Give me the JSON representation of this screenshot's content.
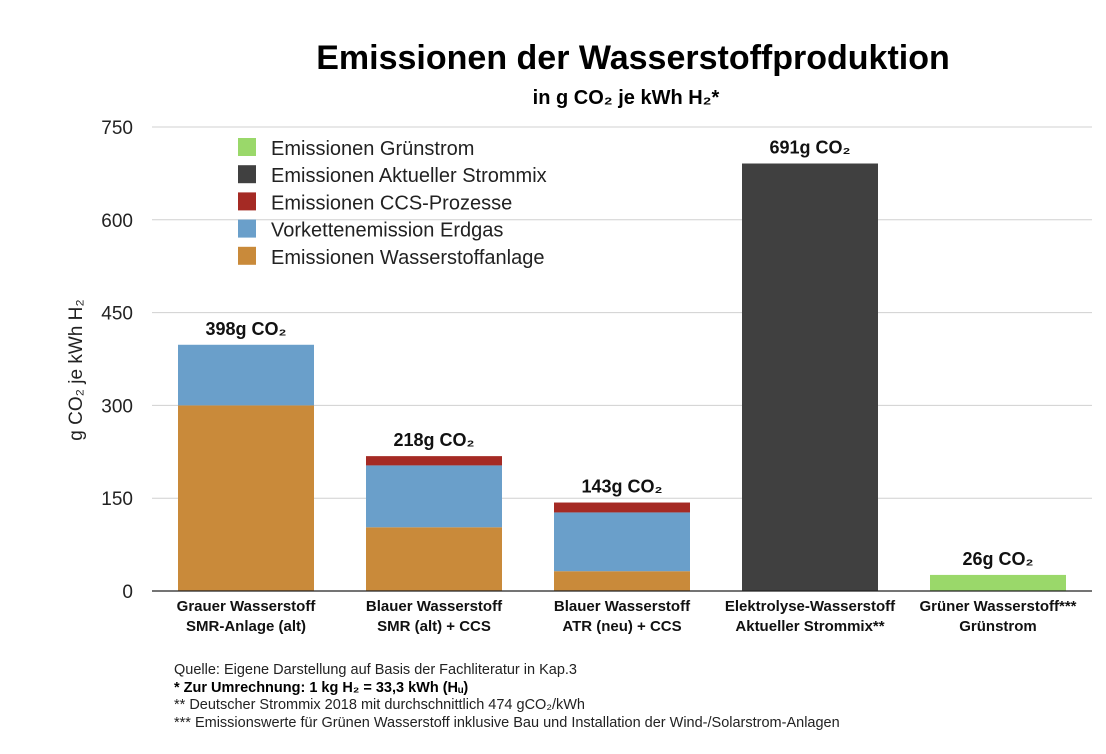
{
  "chart_data": {
    "type": "bar",
    "stacked": true,
    "title": "Emissionen der Wasserstoffproduktion",
    "subtitle": "in g CO₂ je kWh H₂*",
    "ylabel": "g CO₂ je kWh H₂",
    "ylim": [
      0,
      750
    ],
    "yticks": [
      "0",
      "150",
      "300",
      "450",
      "600",
      "750"
    ],
    "grid": true,
    "legend_position": "top-left",
    "categories": [
      [
        "Grauer Wasserstoff",
        "SMR-Anlage (alt)"
      ],
      [
        "Blauer Wasserstoff",
        "SMR (alt) + CCS"
      ],
      [
        "Blauer Wasserstoff",
        "ATR (neu) + CCS"
      ],
      [
        "Elektrolyse-Wasserstoff",
        "Aktueller Strommix**"
      ],
      [
        "Grüner Wasserstoff***",
        "Grünstrom"
      ]
    ],
    "series": [
      {
        "name": "Emissionen Wasserstoffanlage",
        "color": "#c98a3a",
        "values": [
          300,
          103,
          32,
          0,
          0
        ]
      },
      {
        "name": "Vorkettenemission Erdgas",
        "color": "#6a9fca",
        "values": [
          98,
          100,
          95,
          0,
          0
        ]
      },
      {
        "name": "Emissionen CCS-Prozesse",
        "color": "#a52a24",
        "values": [
          0,
          15,
          16,
          0,
          0
        ]
      },
      {
        "name": "Emissionen Aktueller Strommix",
        "color": "#404040",
        "values": [
          0,
          0,
          0,
          691,
          0
        ]
      },
      {
        "name": "Emissionen Grünstrom",
        "color": "#9ad86a",
        "values": [
          0,
          0,
          0,
          0,
          26
        ]
      }
    ],
    "legend_order": [
      "Emissionen Grünstrom",
      "Emissionen Aktueller Strommix",
      "Emissionen CCS-Prozesse",
      "Vorkettenemission Erdgas",
      "Emissionen Wasserstoffanlage"
    ],
    "totals": [
      398,
      218,
      143,
      691,
      26
    ],
    "total_labels": [
      "398g CO₂",
      "218g CO₂",
      "143g CO₂",
      "691g CO₂",
      "26g CO₂"
    ]
  },
  "notes": {
    "source": "Quelle: Eigene Darstellung auf Basis der Fachliteratur in Kap.3",
    "conversion": "* Zur Umrechnung: 1 kg H₂ = 33,3 kWh (Hᵤ)",
    "strommix": "** Deutscher Strommix 2018 mit durchschnittlich 474 gCO₂/kWh",
    "green": "*** Emissionswerte für Grünen Wasserstoff inklusive Bau und Installation der Wind-/Solarstrom-Anlagen"
  }
}
